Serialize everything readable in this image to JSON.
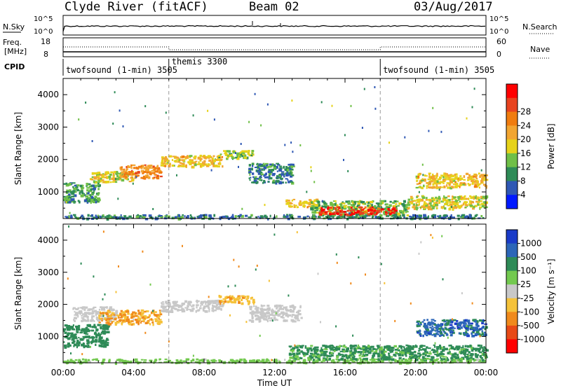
{
  "header": {
    "station": "Clyde River (fitACF)",
    "beam": "Beam 02",
    "date": "03/Aug/2017"
  },
  "top_panels": {
    "nsky_label": "N.Sky",
    "nsky_ticks": [
      "10^5",
      "10^0"
    ],
    "nsearch_label": "N.Search",
    "nsearch_ticks": [
      "10^5",
      "10^0"
    ],
    "freq_label": "Freq.",
    "freq_unit": "[MHz]",
    "freq_ticks": [
      "18",
      "8"
    ],
    "nave_label": "Nave",
    "nave_ticks": [
      "60",
      "0"
    ],
    "cpid_label": "CPID",
    "cpid_segments": [
      {
        "name": "twofsound (1-min) 3505",
        "start_h": 0,
        "end_h": 6
      },
      {
        "name": "themis 3300",
        "start_h": 6,
        "end_h": 18
      },
      {
        "name": "twofsound (1-min) 3505",
        "start_h": 18,
        "end_h": 24
      }
    ]
  },
  "chart_data": [
    {
      "type": "heatmap",
      "title": "",
      "xlabel": "Time UT",
      "ylabel": "Slant Range [km]",
      "xlim": [
        0,
        24
      ],
      "ylim": [
        180,
        4500
      ],
      "x_ticks": [
        "00:00",
        "04:00",
        "08:00",
        "12:00",
        "16:00",
        "20:00",
        "00:00"
      ],
      "y_ticks": [
        1000,
        2000,
        3000,
        4000
      ],
      "colorbar_label": "Power [dB]",
      "colorbar_ticks": [
        4,
        8,
        12,
        16,
        20,
        24,
        28
      ],
      "colorbar_colors": [
        "#0019ff",
        "#2f58b4",
        "#2e8b57",
        "#6fbf47",
        "#e6d21a",
        "#f2a531",
        "#f07c0f",
        "#e8431f",
        "#ff0000"
      ],
      "regions": [
        {
          "t0": 0.0,
          "t1": 24.0,
          "r0": 200,
          "r1": 320,
          "value": 8
        },
        {
          "t0": 0.0,
          "t1": 2.0,
          "r0": 700,
          "r1": 1300,
          "value": 10
        },
        {
          "t0": 1.5,
          "t1": 4.0,
          "r0": 1300,
          "r1": 1650,
          "value": 16
        },
        {
          "t0": 3.2,
          "t1": 5.5,
          "r0": 1450,
          "r1": 1850,
          "value": 22
        },
        {
          "t0": 5.5,
          "t1": 9.0,
          "r0": 1800,
          "r1": 2150,
          "value": 18
        },
        {
          "t0": 8.8,
          "t1": 10.8,
          "r0": 2050,
          "r1": 2300,
          "value": 14
        },
        {
          "t0": 10.5,
          "t1": 13.0,
          "r0": 1300,
          "r1": 1900,
          "value": 8
        },
        {
          "t0": 12.6,
          "t1": 14.5,
          "r0": 550,
          "r1": 800,
          "value": 18
        },
        {
          "t0": 14.0,
          "t1": 19.5,
          "r0": 300,
          "r1": 750,
          "value": 12
        },
        {
          "t0": 14.5,
          "t1": 18.8,
          "r0": 330,
          "r1": 560,
          "value": 28
        },
        {
          "t0": 19.5,
          "t1": 24.0,
          "r0": 500,
          "r1": 900,
          "value": 16
        },
        {
          "t0": 20.0,
          "t1": 24.0,
          "r0": 1150,
          "r1": 1600,
          "value": 18
        }
      ]
    },
    {
      "type": "heatmap",
      "title": "",
      "xlabel": "Time UT",
      "ylabel": "Slant Range [km]",
      "xlim": [
        0,
        24
      ],
      "ylim": [
        180,
        4500
      ],
      "x_ticks": [
        "00:00",
        "04:00",
        "08:00",
        "12:00",
        "16:00",
        "20:00",
        "00:00"
      ],
      "y_ticks": [
        1000,
        2000,
        3000,
        4000
      ],
      "colorbar_label": "Velocity [m s⁻¹]",
      "colorbar_ticks": [
        "1000",
        "500",
        "100",
        "25",
        "-25",
        "-100",
        "-500",
        "-1000"
      ],
      "colorbar_colors": [
        "#1a3bc8",
        "#2c66b8",
        "#2e8b57",
        "#73c94f",
        "#c8c8c8",
        "#f5c23a",
        "#f08a1c",
        "#e84a16",
        "#ff0000"
      ],
      "regions": [
        {
          "t0": 0.0,
          "t1": 24.0,
          "r0": 200,
          "r1": 320,
          "value": 60
        },
        {
          "t0": 0.0,
          "t1": 2.5,
          "r0": 700,
          "r1": 1400,
          "value": 300
        },
        {
          "t0": 0.5,
          "t1": 3.0,
          "r0": 1500,
          "r1": 1950,
          "value": 0
        },
        {
          "t0": 2.0,
          "t1": 5.5,
          "r0": 1400,
          "r1": 1850,
          "value": -100
        },
        {
          "t0": 5.5,
          "t1": 9.0,
          "r0": 1800,
          "r1": 2150,
          "value": 0
        },
        {
          "t0": 8.8,
          "t1": 10.8,
          "r0": 2050,
          "r1": 2300,
          "value": -80
        },
        {
          "t0": 10.5,
          "t1": 13.5,
          "r0": 1500,
          "r1": 2000,
          "value": 0
        },
        {
          "t0": 12.8,
          "t1": 24.0,
          "r0": 300,
          "r1": 750,
          "value": 150
        },
        {
          "t0": 20.0,
          "t1": 24.0,
          "r0": 1050,
          "r1": 1550,
          "value": 700
        }
      ]
    }
  ]
}
